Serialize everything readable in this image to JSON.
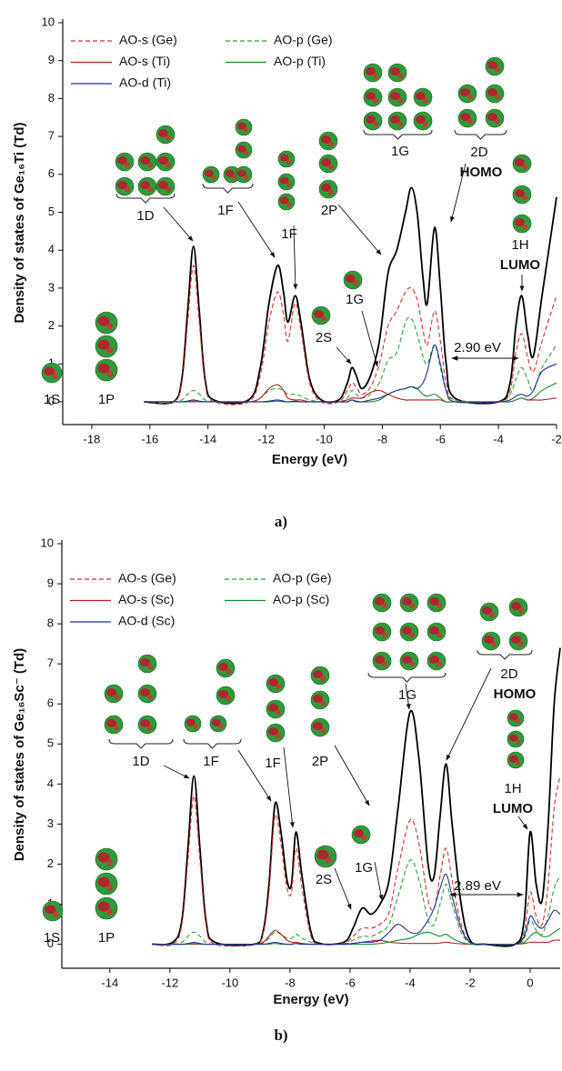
{
  "chart_data": [
    {
      "type": "line",
      "x_label": "Energy (eV)",
      "y_label": "Density of states of Ge₁₆Ti (Td)",
      "caption": "a)",
      "xlim": [
        -19,
        -2
      ],
      "ylim": [
        -0.6,
        10
      ],
      "xticks": [
        -18,
        -16,
        -14,
        -12,
        -10,
        -8,
        -6,
        -4,
        -2
      ],
      "yticks": [
        0,
        1,
        2,
        3,
        4,
        5,
        6,
        7,
        8,
        9,
        10
      ],
      "legend": "upper left",
      "x": [
        -16.2,
        -15.2,
        -14.9,
        -14.7,
        -14.5,
        -14.3,
        -14.1,
        -13.8,
        -12.6,
        -12.2,
        -11.9,
        -11.6,
        -11.4,
        -11.25,
        -11.0,
        -10.8,
        -10.5,
        -10.1,
        -9.5,
        -9.2,
        -9.05,
        -8.9,
        -8.7,
        -8.4,
        -8.1,
        -7.8,
        -7.5,
        -7.2,
        -7.0,
        -6.8,
        -6.6,
        -6.45,
        -6.2,
        -6.0,
        -5.8,
        -5.5,
        -4.0,
        -3.6,
        -3.4,
        -3.2,
        -3.0,
        -2.8,
        -2.5,
        -2.0
      ],
      "series": [
        {
          "color": "#000000",
          "dash": "solid",
          "values": [
            0,
            0,
            0.6,
            2.4,
            4.1,
            2.4,
            0.6,
            0.05,
            0.05,
            0.9,
            2.6,
            3.6,
            2.9,
            2.1,
            2.8,
            2.1,
            0.6,
            0.05,
            0.05,
            0.5,
            0.9,
            0.7,
            0.35,
            0.7,
            1.6,
            3.4,
            4.0,
            5.0,
            5.65,
            5.0,
            3.3,
            2.6,
            4.6,
            3.0,
            1.0,
            0.1,
            0,
            0.5,
            2.0,
            2.8,
            1.8,
            1.2,
            2.8,
            5.4
          ]
        },
        {
          "name": "AO-s (Ge)",
          "color": "#d0312d",
          "dash": "dashed",
          "values": [
            0,
            0,
            0.5,
            2.1,
            3.6,
            2.1,
            0.5,
            0,
            0,
            0.7,
            2.1,
            2.9,
            2.3,
            1.6,
            2.6,
            1.9,
            0.5,
            0,
            0,
            0.3,
            0.5,
            0.4,
            0.2,
            0.4,
            1.0,
            2.0,
            2.4,
            2.9,
            3.0,
            2.7,
            1.9,
            1.5,
            2.4,
            1.6,
            0.5,
            0.05,
            0,
            0.3,
            1.3,
            1.8,
            1.2,
            0.8,
            1.6,
            2.8
          ]
        },
        {
          "name": "AO-p (Ge)",
          "color": "#2e9e3e",
          "dash": "dashed",
          "values": [
            0,
            0,
            0.05,
            0.2,
            0.3,
            0.2,
            0.05,
            0,
            0,
            0.1,
            0.3,
            0.35,
            0.3,
            0.2,
            0.2,
            0.15,
            0.05,
            0,
            0,
            0.1,
            0.3,
            0.2,
            0.1,
            0.2,
            0.5,
            1.1,
            1.3,
            2.1,
            2.2,
            1.8,
            1.2,
            1.0,
            1.5,
            0.9,
            0.3,
            0.05,
            0,
            0.2,
            0.6,
            0.9,
            0.6,
            0.3,
            0.9,
            1.5
          ]
        },
        {
          "name": "AO-s (Ti)",
          "color": "#b81f1f",
          "dash": "solid",
          "values": [
            0,
            0,
            0,
            0,
            0,
            0,
            0,
            0,
            0,
            0.1,
            0.35,
            0.45,
            0.3,
            0.1,
            0.05,
            0.05,
            0,
            0,
            0,
            0.05,
            0.1,
            0.1,
            0.1,
            0.25,
            0.3,
            0.2,
            0.1,
            0.05,
            0.05,
            0.05,
            0.05,
            0.05,
            0.05,
            0.05,
            0,
            0,
            0,
            0,
            0.05,
            0.1,
            0.05,
            0.05,
            0.05,
            0.1
          ]
        },
        {
          "name": "AO-p (Ti)",
          "color": "#1e8a2e",
          "dash": "solid",
          "values": [
            0,
            0,
            0,
            0,
            0.02,
            0,
            0,
            0,
            0,
            0,
            0,
            0.02,
            0,
            0,
            0,
            0,
            0,
            0,
            0,
            0,
            0.05,
            0,
            0,
            0,
            0.05,
            0.2,
            0.3,
            0.35,
            0.4,
            0.35,
            0.2,
            0.15,
            0.2,
            0.1,
            0,
            0,
            0,
            0,
            0.05,
            0.1,
            0.05,
            0.1,
            0.3,
            0.5
          ]
        },
        {
          "name": "AO-d (Ti)",
          "color": "#1f2f8f",
          "dash": "solid",
          "values": [
            0,
            0,
            0,
            0.02,
            0.05,
            0.02,
            0,
            0,
            0,
            0,
            0.02,
            0.05,
            0.02,
            0,
            0.02,
            0,
            0,
            0,
            0,
            0,
            0.05,
            0.02,
            0,
            0.05,
            0.1,
            0.2,
            0.3,
            0.35,
            0.4,
            0.35,
            0.5,
            0.8,
            1.5,
            1.0,
            0.3,
            0,
            0,
            0.05,
            0.15,
            0.2,
            0.15,
            0.3,
            0.8,
            1.0
          ]
        }
      ],
      "annotations": [
        "1S",
        "1P",
        "1D",
        "1F",
        "1F",
        "2P",
        "1G",
        "2D",
        "HOMO",
        "1H",
        "LUMO",
        "2S",
        "1G",
        "2.90 eV"
      ]
    },
    {
      "type": "line",
      "x_label": "Energy (eV)",
      "y_label": "Density of states of Ge₁₆Sc⁻ (Td)",
      "caption": "b)",
      "xlim": [
        -15.6,
        1.0
      ],
      "ylim": [
        -0.6,
        10
      ],
      "xticks": [
        -14,
        -12,
        -10,
        -8,
        -6,
        -4,
        -2,
        0
      ],
      "yticks": [
        0,
        1,
        2,
        3,
        4,
        5,
        6,
        7,
        8,
        9,
        10
      ],
      "legend": "upper left",
      "x": [
        -12.6,
        -11.9,
        -11.6,
        -11.4,
        -11.2,
        -11.0,
        -10.8,
        -10.5,
        -9.2,
        -8.9,
        -8.7,
        -8.5,
        -8.3,
        -8.1,
        -7.95,
        -7.8,
        -7.6,
        -7.3,
        -7.0,
        -6.2,
        -5.9,
        -5.6,
        -5.3,
        -5.0,
        -4.7,
        -4.4,
        -4.0,
        -3.7,
        -3.4,
        -3.2,
        -3.0,
        -2.8,
        -2.6,
        -2.3,
        -2.0,
        -1.5,
        -0.5,
        -0.2,
        0,
        0.2,
        0.4,
        0.6,
        0.8,
        1.0
      ],
      "series": [
        {
          "color": "#000000",
          "dash": "solid",
          "values": [
            0,
            0.05,
            0.6,
            2.4,
            4.2,
            2.4,
            0.6,
            0.05,
            0,
            0.3,
            1.5,
            3.5,
            2.8,
            1.6,
            1.5,
            2.8,
            1.7,
            0.3,
            0.02,
            0.05,
            0.4,
            0.9,
            0.75,
            1.0,
            1.6,
            3.4,
            5.8,
            4.6,
            2.0,
            1.7,
            3.2,
            4.5,
            3.0,
            1.0,
            0.1,
            0,
            0,
            0.6,
            2.8,
            1.5,
            1.1,
            3.0,
            6.0,
            7.4
          ]
        },
        {
          "name": "AO-s (Ge)",
          "color": "#d0312d",
          "dash": "dashed",
          "values": [
            0,
            0,
            0.5,
            2.1,
            3.7,
            2.1,
            0.5,
            0,
            0,
            0.25,
            1.3,
            3.2,
            2.5,
            1.4,
            1.3,
            2.4,
            1.4,
            0.2,
            0,
            0.03,
            0.2,
            0.4,
            0.4,
            0.5,
            0.8,
            1.9,
            3.1,
            2.5,
            1.1,
            0.9,
            1.7,
            2.4,
            1.6,
            0.5,
            0.05,
            0,
            0,
            0.3,
            1.3,
            0.7,
            0.5,
            1.5,
            3.4,
            4.2
          ]
        },
        {
          "name": "AO-p (Ge)",
          "color": "#2e9e3e",
          "dash": "dashed",
          "values": [
            0,
            0,
            0.05,
            0.2,
            0.3,
            0.2,
            0.05,
            0,
            0,
            0.03,
            0.15,
            0.3,
            0.25,
            0.15,
            0.15,
            0.25,
            0.15,
            0.05,
            0,
            0.01,
            0.1,
            0.2,
            0.2,
            0.3,
            0.5,
            1.2,
            2.1,
            1.6,
            0.6,
            0.5,
            1.0,
            1.5,
            1.0,
            0.3,
            0.03,
            0,
            0,
            0.15,
            0.6,
            0.35,
            0.25,
            0.7,
            1.4,
            1.7
          ]
        },
        {
          "name": "AO-s (Sc)",
          "color": "#b81f1f",
          "dash": "solid",
          "values": [
            0,
            0,
            0,
            0,
            0,
            0,
            0,
            0,
            0,
            0.05,
            0.2,
            0.35,
            0.25,
            0.1,
            0.05,
            0.05,
            0.02,
            0,
            0,
            0,
            0.02,
            0.05,
            0.08,
            0.1,
            0.05,
            0.03,
            0.02,
            0.02,
            0.02,
            0.02,
            0.03,
            0.05,
            0.03,
            0.01,
            0,
            0,
            0,
            0.02,
            0.05,
            0.05,
            0.05,
            0.05,
            0.1,
            0.1
          ]
        },
        {
          "name": "AO-p (Sc)",
          "color": "#1e8a2e",
          "dash": "solid",
          "values": [
            0,
            0,
            0,
            0,
            0.02,
            0,
            0,
            0,
            0,
            0,
            0,
            0.02,
            0,
            0,
            0,
            0.02,
            0,
            0,
            0,
            0,
            0,
            0,
            0,
            0.02,
            0.05,
            0.1,
            0.15,
            0.25,
            0.3,
            0.25,
            0.2,
            0.25,
            0.15,
            0.05,
            0,
            0,
            0,
            0.05,
            0.2,
            0.3,
            0.2,
            0.2,
            0.3,
            0.4
          ]
        },
        {
          "name": "AO-d (Sc)",
          "color": "#1f2f8f",
          "dash": "solid",
          "values": [
            0,
            0,
            0,
            0.02,
            0.05,
            0.02,
            0,
            0,
            0,
            0,
            0.02,
            0.05,
            0.02,
            0,
            0,
            0.02,
            0,
            0,
            0,
            0,
            0.02,
            0.05,
            0.05,
            0.1,
            0.3,
            0.5,
            0.3,
            0.3,
            0.6,
            0.9,
            1.4,
            1.75,
            1.2,
            0.4,
            0.05,
            0,
            0,
            0.2,
            0.7,
            0.5,
            0.4,
            0.6,
            0.85,
            0.75
          ]
        }
      ],
      "annotations": [
        "1S",
        "1P",
        "1D",
        "1F",
        "1F",
        "2P",
        "1G",
        "2D",
        "HOMO",
        "1H",
        "LUMO",
        "2S",
        "1G",
        "2.89 eV"
      ]
    }
  ]
}
